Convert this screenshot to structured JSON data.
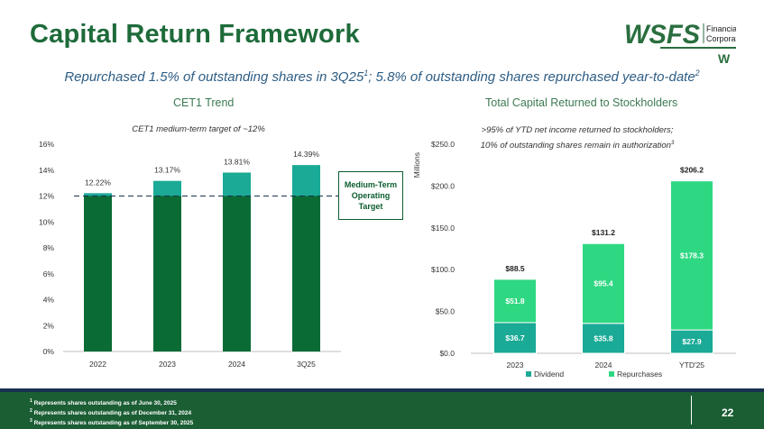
{
  "slide": {
    "title": "Capital Return Framework",
    "subtitle_text": "Repurchased 1.5% of outstanding shares in 3Q25",
    "subtitle_sup1": "1",
    "subtitle_mid": "; 5.8% of outstanding shares repurchased year-to-date",
    "subtitle_sup2": "2",
    "page_number": "22"
  },
  "logo": {
    "wordmark": "WSFS",
    "line1": "Financial",
    "line2": "Corporation",
    "mark": "W",
    "color": "#2a6e3f"
  },
  "footnotes": [
    {
      "sup": "1",
      "text": "Represents shares outstanding as of June 30, 2025"
    },
    {
      "sup": "2",
      "text": "Represents shares outstanding as of December 31, 2024"
    },
    {
      "sup": "3",
      "text": "Represents shares outstanding as of September 30, 2025"
    }
  ],
  "callout": {
    "line1": "Medium-Term",
    "line2": "Operating",
    "line3": "Target"
  },
  "colors": {
    "dark_green": "#0b6b35",
    "teal": "#1aaa96",
    "light_green": "#2ed882",
    "title_green": "#1e6b3a",
    "navy": "#17324f"
  },
  "chart_data": [
    {
      "type": "bar",
      "title": "CET1 Trend",
      "subtitle": "CET1 medium-term target of ~12%",
      "categories": [
        "2022",
        "2023",
        "2024",
        "3Q25"
      ],
      "values": [
        12.22,
        13.17,
        13.81,
        14.39
      ],
      "data_labels": [
        "12.22%",
        "13.17%",
        "13.81%",
        "14.39%"
      ],
      "target": 12,
      "ylim": [
        0,
        16
      ],
      "yticks": [
        0,
        2,
        4,
        6,
        8,
        10,
        12,
        14,
        16
      ],
      "ytick_labels": [
        "0%",
        "2%",
        "4%",
        "6%",
        "8%",
        "10%",
        "12%",
        "14%",
        "16%"
      ],
      "base_color": "#0b6b35",
      "excess_color": "#1aaa96"
    },
    {
      "type": "bar",
      "stacked": true,
      "title": "Total Capital Returned to Stockholders",
      "note_line1": ">95% of YTD net income returned to stockholders;",
      "note_line2": "10% of outstanding shares remain in authorization",
      "note_sup": "3",
      "ylabel": "Millions",
      "categories": [
        "2023",
        "2024",
        "YTD'25"
      ],
      "series": [
        {
          "name": "Dividend",
          "values": [
            36.7,
            35.8,
            27.9
          ],
          "labels": [
            "$36.7",
            "$35.8",
            "$27.9"
          ],
          "color": "#1aaa96"
        },
        {
          "name": "Repurchases",
          "values": [
            51.8,
            95.4,
            178.3
          ],
          "labels": [
            "$51.8",
            "$95.4",
            "$178.3"
          ],
          "color": "#2ed882"
        }
      ],
      "totals": [
        88.5,
        131.2,
        206.2
      ],
      "total_labels": [
        "$88.5",
        "$131.2",
        "$206.2"
      ],
      "ylim": [
        0,
        250
      ],
      "yticks": [
        0,
        50,
        100,
        150,
        200,
        250
      ],
      "ytick_labels": [
        "$0.0",
        "$50.0",
        "$100.0",
        "$150.0",
        "$200.0",
        "$250.0"
      ],
      "legend_placement": "bottom"
    }
  ]
}
